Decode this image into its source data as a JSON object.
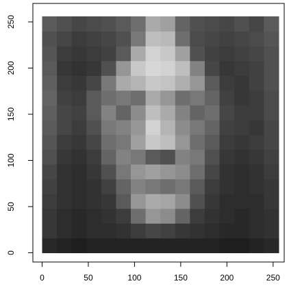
{
  "chart_data": {
    "type": "image",
    "x_edges": [
      0,
      16,
      32,
      48,
      64,
      80,
      96,
      112,
      128,
      144,
      160,
      176,
      192,
      208,
      224,
      240,
      256
    ],
    "y_edges": [
      0,
      16,
      32,
      48,
      64,
      80,
      96,
      112,
      128,
      144,
      160,
      176,
      192,
      208,
      224,
      240,
      256
    ],
    "z": [
      [
        40,
        35,
        30,
        35,
        35,
        35,
        35,
        35,
        35,
        35,
        35,
        35,
        30,
        30,
        35,
        40
      ],
      [
        55,
        45,
        40,
        45,
        45,
        50,
        60,
        70,
        65,
        55,
        50,
        45,
        40,
        40,
        45,
        50
      ],
      [
        55,
        45,
        40,
        45,
        50,
        60,
        110,
        150,
        140,
        100,
        60,
        50,
        45,
        40,
        45,
        50
      ],
      [
        60,
        50,
        45,
        50,
        55,
        90,
        150,
        170,
        165,
        140,
        80,
        55,
        45,
        45,
        45,
        55
      ],
      [
        65,
        50,
        45,
        50,
        65,
        100,
        130,
        120,
        110,
        120,
        90,
        60,
        50,
        45,
        50,
        55
      ],
      [
        70,
        50,
        45,
        55,
        80,
        120,
        150,
        160,
        150,
        140,
        110,
        70,
        50,
        45,
        50,
        60
      ],
      [
        80,
        55,
        50,
        60,
        100,
        130,
        120,
        90,
        80,
        130,
        120,
        80,
        55,
        50,
        55,
        65
      ],
      [
        85,
        60,
        55,
        70,
        110,
        120,
        160,
        200,
        190,
        150,
        110,
        90,
        60,
        55,
        60,
        70
      ],
      [
        90,
        70,
        60,
        80,
        120,
        130,
        150,
        210,
        180,
        140,
        120,
        100,
        65,
        60,
        55,
        70
      ],
      [
        95,
        70,
        65,
        90,
        130,
        100,
        140,
        190,
        170,
        130,
        100,
        110,
        70,
        60,
        60,
        75
      ],
      [
        100,
        65,
        60,
        90,
        110,
        120,
        110,
        170,
        150,
        110,
        120,
        100,
        65,
        55,
        60,
        75
      ],
      [
        95,
        60,
        55,
        70,
        120,
        170,
        180,
        200,
        195,
        175,
        150,
        90,
        60,
        55,
        65,
        80
      ],
      [
        90,
        55,
        50,
        55,
        80,
        150,
        200,
        215,
        210,
        190,
        130,
        70,
        55,
        60,
        65,
        80
      ],
      [
        85,
        60,
        55,
        60,
        65,
        90,
        170,
        210,
        200,
        160,
        80,
        65,
        60,
        65,
        70,
        80
      ],
      [
        80,
        70,
        60,
        65,
        70,
        80,
        120,
        190,
        185,
        110,
        75,
        70,
        65,
        70,
        75,
        85
      ],
      [
        90,
        80,
        70,
        75,
        80,
        90,
        110,
        170,
        160,
        100,
        80,
        75,
        70,
        80,
        70,
        90
      ]
    ],
    "xlim": [
      -10,
      262
    ],
    "ylim": [
      -10,
      270
    ],
    "xticks": [
      0,
      50,
      100,
      150,
      200,
      250
    ],
    "yticks": [
      0,
      50,
      100,
      150,
      200,
      250
    ]
  }
}
